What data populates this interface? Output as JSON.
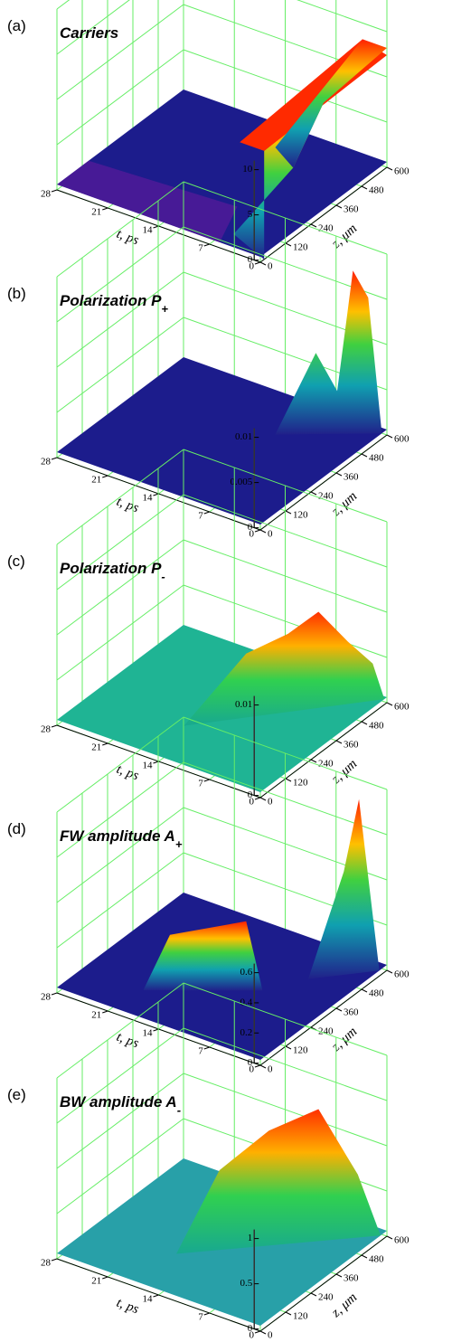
{
  "panels": [
    {
      "label": "(a)",
      "title": "Carriers",
      "subscript": null,
      "t_label": "t, ps",
      "z_label": "z, μm",
      "t_ticks": [
        28,
        21,
        14,
        7,
        0
      ],
      "z_ticks": [
        0,
        120,
        240,
        360,
        480,
        600
      ],
      "v_ticks": [
        10,
        5,
        0
      ]
    },
    {
      "label": "(b)",
      "title": "Polarization P",
      "subscript": "+",
      "t_label": "t, ps",
      "z_label": "z, μm",
      "t_ticks": [
        28,
        21,
        14,
        7,
        0
      ],
      "z_ticks": [
        0,
        120,
        240,
        360,
        480,
        600
      ],
      "v_ticks": [
        0.01,
        0.005,
        0
      ]
    },
    {
      "label": "(c)",
      "title": "Polarization P",
      "subscript": "-",
      "t_label": "t, ps",
      "z_label": "z, μm",
      "t_ticks": [
        28,
        21,
        14,
        7,
        0
      ],
      "z_ticks": [
        0,
        120,
        240,
        360,
        480,
        600
      ],
      "v_ticks": [
        0.01,
        0
      ]
    },
    {
      "label": "(d)",
      "title": "FW amplitude A",
      "subscript": "+",
      "t_label": "t, ps",
      "z_label": "z, μm",
      "t_ticks": [
        28,
        21,
        14,
        7,
        0
      ],
      "z_ticks": [
        0,
        120,
        240,
        360,
        480,
        600
      ],
      "v_ticks": [
        0.6,
        0.4,
        0.2,
        0
      ]
    },
    {
      "label": "(e)",
      "title": "BW amplitude A",
      "subscript": "-",
      "t_label": "t, ps",
      "z_label": "z, μm",
      "t_ticks": [
        28,
        21,
        14,
        7,
        0
      ],
      "z_ticks": [
        0,
        120,
        240,
        360,
        480,
        600
      ],
      "v_ticks": [
        1,
        0.5,
        0
      ]
    }
  ]
}
